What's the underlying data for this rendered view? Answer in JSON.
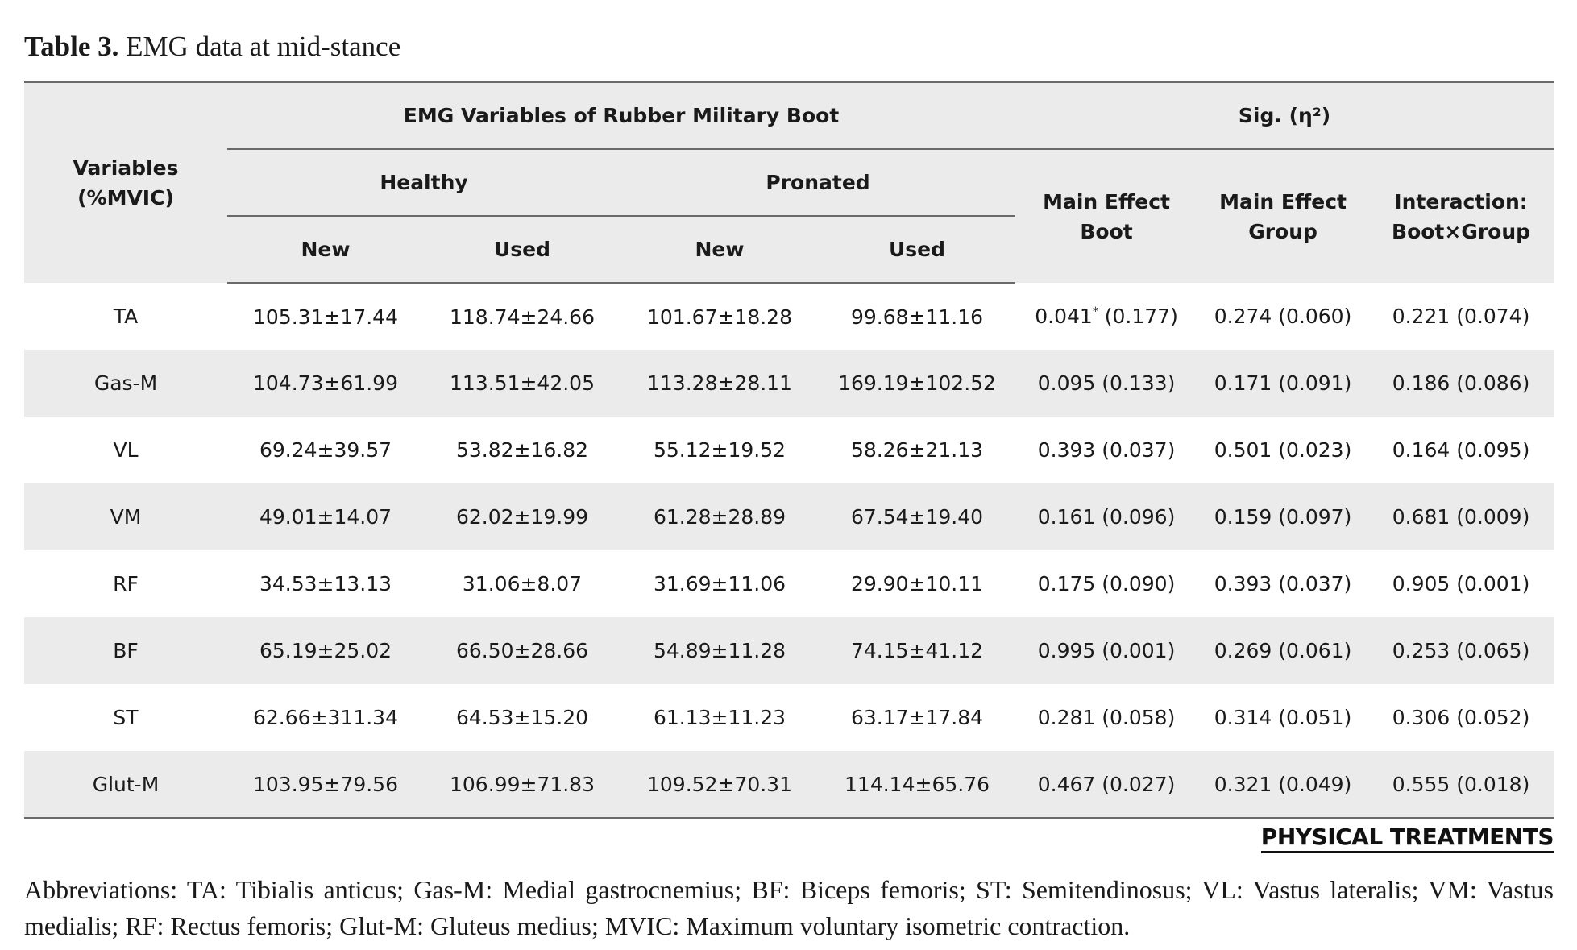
{
  "caption": {
    "label": "Table 3.",
    "text": "EMG data at mid-stance"
  },
  "table": {
    "header": {
      "variables_line1": "Variables",
      "variables_line2": "(%MVIC)",
      "group_boot": "EMG Variables of Rubber Military Boot",
      "group_sig": "Sig. (η²)",
      "healthy": "Healthy",
      "pronated": "Pronated",
      "new": "New",
      "used": "Used",
      "main_boot_line1": "Main Effect",
      "main_boot_line2": "Boot",
      "main_group_line1": "Main Effect",
      "main_group_line2": "Group",
      "interaction_line1": "Interaction:",
      "interaction_line2": "Boot×Group"
    },
    "rows": [
      {
        "variable": "TA",
        "healthy_new": "105.31±17.44",
        "healthy_used": "118.74±24.66",
        "pronated_new": "101.67±18.28",
        "pronated_used": "99.68±11.16",
        "boot_p": "0.041",
        "boot_mark": "*",
        "boot_eta": " (0.177)",
        "group": "0.274 (0.060)",
        "interaction": "0.221 (0.074)"
      },
      {
        "variable": "Gas-M",
        "healthy_new": "104.73±61.99",
        "healthy_used": "113.51±42.05",
        "pronated_new": "113.28±28.11",
        "pronated_used": "169.19±102.52",
        "boot_p": "0.095 (0.133)",
        "boot_mark": "",
        "boot_eta": "",
        "group": "0.171 (0.091)",
        "interaction": "0.186 (0.086)"
      },
      {
        "variable": "VL",
        "healthy_new": "69.24±39.57",
        "healthy_used": "53.82±16.82",
        "pronated_new": "55.12±19.52",
        "pronated_used": "58.26±21.13",
        "boot_p": "0.393 (0.037)",
        "boot_mark": "",
        "boot_eta": "",
        "group": "0.501 (0.023)",
        "interaction": "0.164 (0.095)"
      },
      {
        "variable": "VM",
        "healthy_new": "49.01±14.07",
        "healthy_used": "62.02±19.99",
        "pronated_new": "61.28±28.89",
        "pronated_used": "67.54±19.40",
        "boot_p": "0.161 (0.096)",
        "boot_mark": "",
        "boot_eta": "",
        "group": "0.159 (0.097)",
        "interaction": "0.681 (0.009)"
      },
      {
        "variable": "RF",
        "healthy_new": "34.53±13.13",
        "healthy_used": "31.06±8.07",
        "pronated_new": "31.69±11.06",
        "pronated_used": "29.90±10.11",
        "boot_p": "0.175 (0.090)",
        "boot_mark": "",
        "boot_eta": "",
        "group": "0.393 (0.037)",
        "interaction": "0.905 (0.001)"
      },
      {
        "variable": "BF",
        "healthy_new": "65.19±25.02",
        "healthy_used": "66.50±28.66",
        "pronated_new": "54.89±11.28",
        "pronated_used": "74.15±41.12",
        "boot_p": "0.995 (0.001)",
        "boot_mark": "",
        "boot_eta": "",
        "group": "0.269 (0.061)",
        "interaction": "0.253 (0.065)"
      },
      {
        "variable": "ST",
        "healthy_new": "62.66±311.34",
        "healthy_used": "64.53±15.20",
        "pronated_new": "61.13±11.23",
        "pronated_used": "63.17±17.84",
        "boot_p": "0.281 (0.058)",
        "boot_mark": "",
        "boot_eta": "",
        "group": "0.314 (0.051)",
        "interaction": "0.306 (0.052)"
      },
      {
        "variable": "Glut-M",
        "healthy_new": "103.95±79.56",
        "healthy_used": "106.99±71.83",
        "pronated_new": "109.52±70.31",
        "pronated_used": "114.14±65.76",
        "boot_p": "0.467 (0.027)",
        "boot_mark": "",
        "boot_eta": "",
        "group": "0.321 (0.049)",
        "interaction": "0.555 (0.018)"
      }
    ]
  },
  "logo": {
    "text": "PHYSICAL TREATMENTS"
  },
  "abbreviations": {
    "text": "Abbreviations: TA: Tibialis anticus; Gas-M: Medial gastrocnemius; BF: Biceps femoris; ST: Semitendinosus; VL: Vastus lateralis; VM: Vastus medialis; RF: Rectus femoris; Glut-M: Gluteus medius; MVIC: Maximum voluntary isometric contraction."
  }
}
